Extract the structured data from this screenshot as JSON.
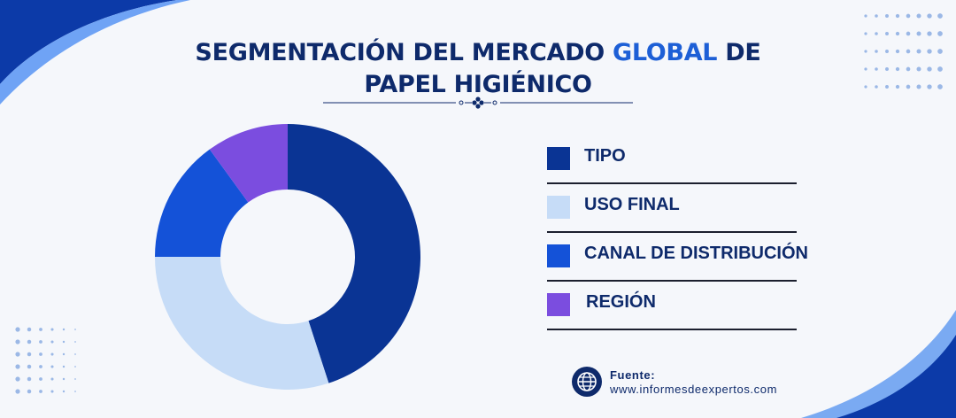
{
  "header": {
    "title_part1": "SEGMENTACIÓN DEL MERCADO ",
    "title_accent": "GLOBAL",
    "title_part2": " DE PAPEL HIGIÉNICO"
  },
  "colors": {
    "navy": "#0a3494",
    "light_blue": "#c6dcf7",
    "blue": "#1452d8",
    "purple": "#7b4ddf",
    "title": "#0e2a6b",
    "accent": "#1d5fd6"
  },
  "chart_data": {
    "type": "pie",
    "variant": "donut",
    "categories": [
      "TIPO",
      "USO FINAL",
      "CANAL DE DISTRIBUCIÓN",
      "REGIÓN"
    ],
    "values": [
      45,
      30,
      15,
      10
    ],
    "colors": [
      "#0a3494",
      "#c6dcf7",
      "#1452d8",
      "#7b4ddf"
    ],
    "legend_position": "right"
  },
  "legend": {
    "items": [
      {
        "label": "TIPO"
      },
      {
        "label": "USO FINAL"
      },
      {
        "label": "CANAL DE DISTRIBUCIÓN"
      },
      {
        "label": "REGIÓN"
      }
    ]
  },
  "source": {
    "label": "Fuente:",
    "url": "www.informesdeexpertos.com",
    "icon": "globe-icon"
  }
}
